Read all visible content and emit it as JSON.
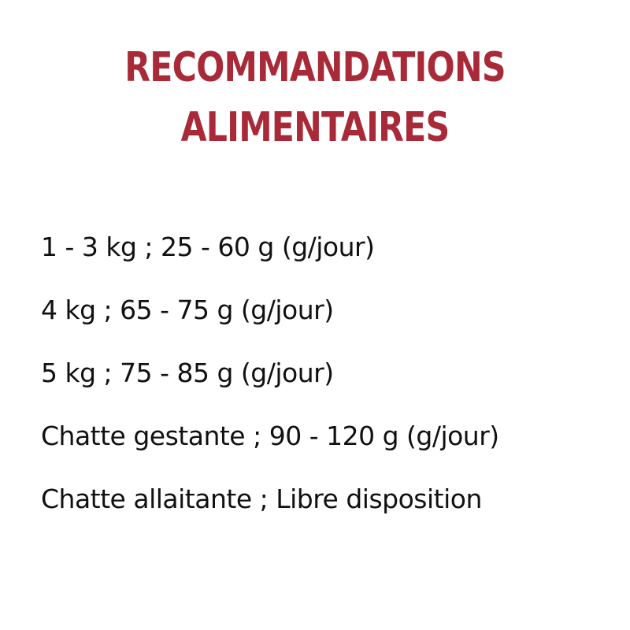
{
  "title": {
    "line1": "RECOMMANDATIONS",
    "line2": "ALIMENTAIRES",
    "color": "#a82a38"
  },
  "recommendations": [
    "1 - 3 kg ; 25 - 60 g (g/jour)",
    "4 kg ; 65 - 75 g (g/jour)",
    "5 kg ; 75 - 85 g (g/jour)",
    "Chatte gestante ; 90 - 120 g (g/jour)",
    "Chatte allaitante ; Libre disposition"
  ]
}
